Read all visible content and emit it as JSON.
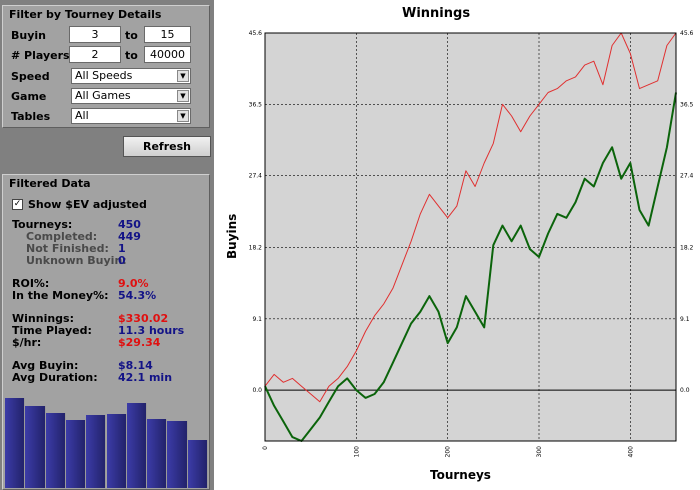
{
  "filter": {
    "title": "Filter by Tourney Details",
    "buyin": {
      "label": "Buyin",
      "min": "3",
      "to": "to",
      "max": "15"
    },
    "players": {
      "label": "# Players",
      "min": "2",
      "to": "to",
      "max": "40000"
    },
    "speed": {
      "label": "Speed",
      "value": "All Speeds"
    },
    "game": {
      "label": "Game",
      "value": "All Games"
    },
    "tables": {
      "label": "Tables",
      "value": "All"
    },
    "refresh_label": "Refresh"
  },
  "filtered": {
    "title": "Filtered Data",
    "show_ev_label": "Show $EV adjusted",
    "show_ev_checked": true,
    "check_glyph": "✓",
    "stats": {
      "tourneys": {
        "label": "Tourneys:",
        "value": "450"
      },
      "completed": {
        "label": "Completed:",
        "value": "449"
      },
      "not_finished": {
        "label": "Not Finished:",
        "value": "1"
      },
      "unknown_buyin": {
        "label": "Unknown Buyin:",
        "value": "0"
      },
      "roi": {
        "label": "ROI%:",
        "value": "9.0%"
      },
      "itm": {
        "label": "In the Money%:",
        "value": "54.3%"
      },
      "winnings": {
        "label": "Winnings:",
        "value": "$330.02"
      },
      "time_played": {
        "label": "Time Played:",
        "value": "11.3 hours"
      },
      "per_hour": {
        "label": "$/hr:",
        "value": "$29.34"
      },
      "avg_buyin": {
        "label": "Avg Buyin:",
        "value": "$8.14"
      },
      "avg_duration": {
        "label": "Avg Duration:",
        "value": "42.1 min"
      }
    },
    "histogram": [
      0.88,
      0.8,
      0.74,
      0.67,
      0.72,
      0.73,
      0.83,
      0.68,
      0.66,
      0.47
    ]
  },
  "colors": {
    "ev_series": "#e03030",
    "winnings_series": "#0b640b",
    "histogram": "#2b2b7e",
    "plot_bg": "#d4d4d4"
  },
  "chart_data": {
    "type": "line",
    "title": "Winnings",
    "xlabel": "Tourneys",
    "ylabel": "Buyins",
    "xlim": [
      0,
      450
    ],
    "ylim": [
      -6.5,
      45.6
    ],
    "x_ticks": [
      "0",
      "100",
      "200",
      "300",
      "400"
    ],
    "y_ticks": [
      "0.0",
      "9.1",
      "18.2",
      "27.4",
      "36.5",
      "45.6"
    ],
    "grid": true,
    "series": [
      {
        "color": "#e03030",
        "points": [
          [
            0,
            0.5
          ],
          [
            10,
            2
          ],
          [
            20,
            1
          ],
          [
            30,
            1.5
          ],
          [
            40,
            0.5
          ],
          [
            50,
            -0.5
          ],
          [
            60,
            -1.5
          ],
          [
            70,
            0.5
          ],
          [
            80,
            1.5
          ],
          [
            90,
            3
          ],
          [
            100,
            5
          ],
          [
            110,
            7.5
          ],
          [
            120,
            9.5
          ],
          [
            130,
            11
          ],
          [
            140,
            13
          ],
          [
            150,
            16
          ],
          [
            160,
            19
          ],
          [
            170,
            22.5
          ],
          [
            180,
            25
          ],
          [
            190,
            23.5
          ],
          [
            200,
            22
          ],
          [
            210,
            23.5
          ],
          [
            220,
            28
          ],
          [
            230,
            26
          ],
          [
            240,
            29
          ],
          [
            250,
            31.5
          ],
          [
            260,
            36.5
          ],
          [
            270,
            35
          ],
          [
            280,
            33
          ],
          [
            290,
            35
          ],
          [
            300,
            36.5
          ],
          [
            310,
            38
          ],
          [
            320,
            38.5
          ],
          [
            330,
            39.5
          ],
          [
            340,
            40
          ],
          [
            350,
            41.5
          ],
          [
            360,
            42
          ],
          [
            370,
            39
          ],
          [
            380,
            44
          ],
          [
            390,
            45.6
          ],
          [
            400,
            43
          ],
          [
            410,
            38.5
          ],
          [
            420,
            39
          ],
          [
            430,
            39.5
          ],
          [
            440,
            44
          ],
          [
            450,
            45.6
          ]
        ]
      },
      {
        "color": "#0b640b",
        "points": [
          [
            0,
            0.5
          ],
          [
            10,
            -2
          ],
          [
            20,
            -4
          ],
          [
            30,
            -6
          ],
          [
            40,
            -6.5
          ],
          [
            50,
            -5
          ],
          [
            60,
            -3.5
          ],
          [
            70,
            -1.5
          ],
          [
            80,
            0.5
          ],
          [
            90,
            1.5
          ],
          [
            100,
            0
          ],
          [
            110,
            -1
          ],
          [
            120,
            -0.5
          ],
          [
            130,
            1
          ],
          [
            140,
            3.5
          ],
          [
            150,
            6
          ],
          [
            160,
            8.5
          ],
          [
            170,
            10
          ],
          [
            180,
            12
          ],
          [
            190,
            10
          ],
          [
            200,
            6
          ],
          [
            210,
            8
          ],
          [
            220,
            12
          ],
          [
            230,
            10
          ],
          [
            240,
            8
          ],
          [
            250,
            18.5
          ],
          [
            260,
            21
          ],
          [
            270,
            19
          ],
          [
            280,
            21
          ],
          [
            290,
            18
          ],
          [
            300,
            17
          ],
          [
            310,
            20
          ],
          [
            320,
            22.5
          ],
          [
            330,
            22
          ],
          [
            340,
            24
          ],
          [
            350,
            27
          ],
          [
            360,
            26
          ],
          [
            370,
            29
          ],
          [
            380,
            31
          ],
          [
            390,
            27
          ],
          [
            400,
            29
          ],
          [
            410,
            23
          ],
          [
            420,
            21
          ],
          [
            430,
            26
          ],
          [
            440,
            31
          ],
          [
            450,
            38
          ]
        ]
      }
    ]
  }
}
